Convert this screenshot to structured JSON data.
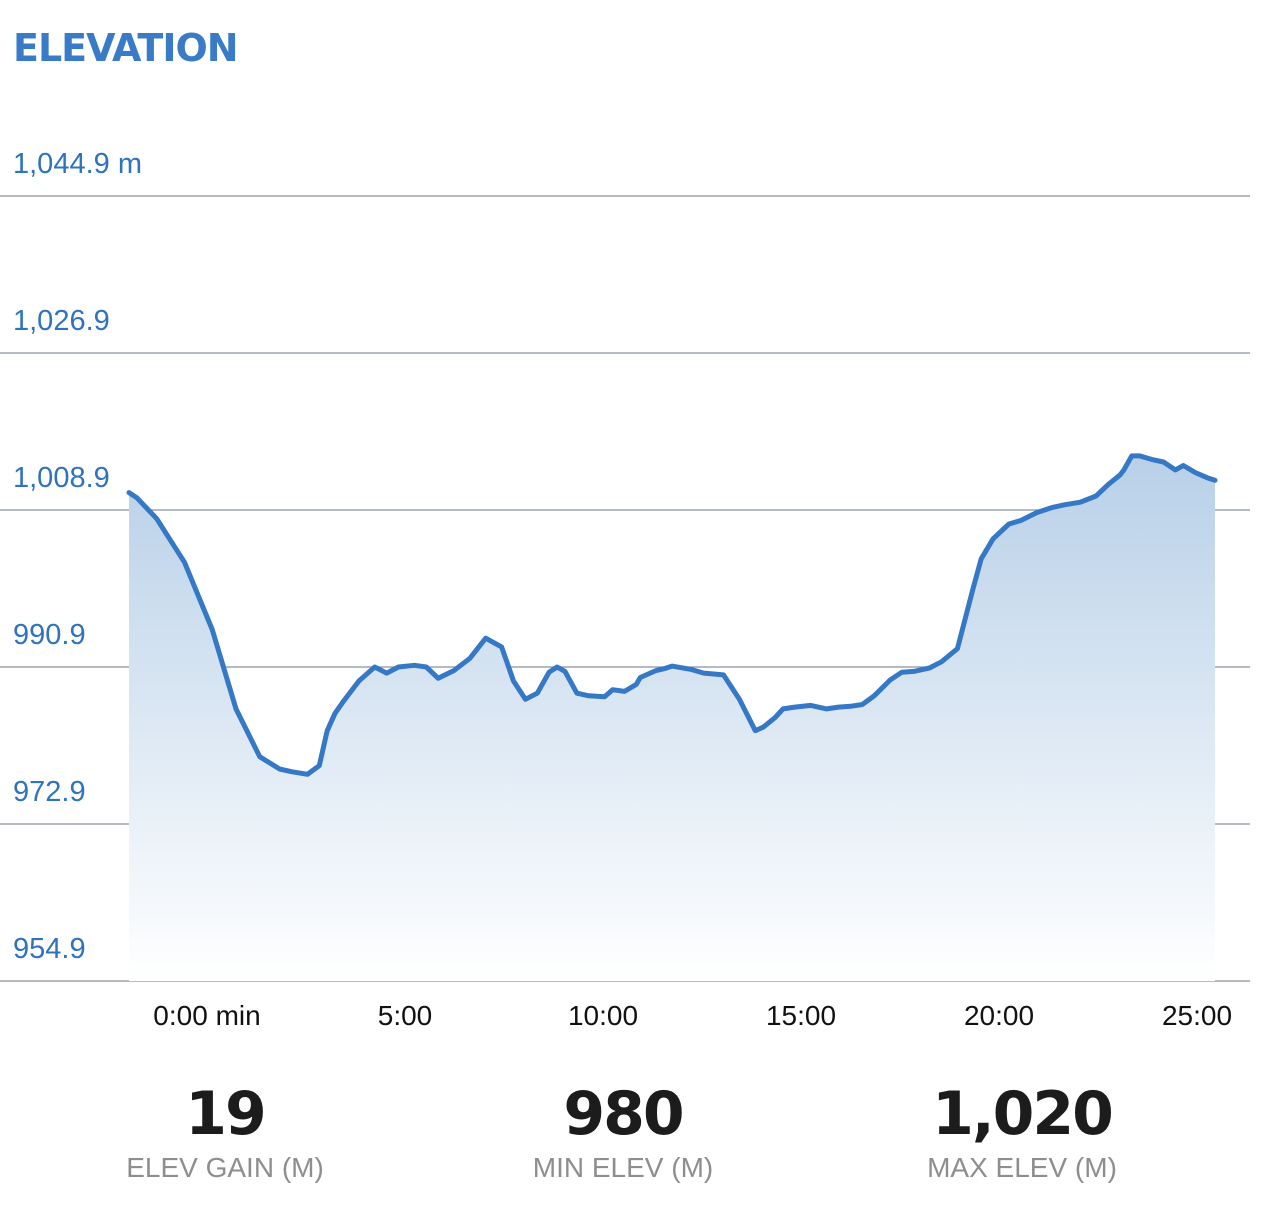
{
  "header": {
    "title": "ELEVATION"
  },
  "colors": {
    "accent": "#2f73bf",
    "line": "#3578c6",
    "grid": "#8b8fa3"
  },
  "chart_data": {
    "type": "area",
    "title": "ELEVATION",
    "ylabel_unit": "m",
    "y_ticks": [
      "1,044.9 m",
      "1,026.9",
      "1,008.9",
      "990.9",
      "972.9",
      "954.9"
    ],
    "y_tick_values": [
      1044.9,
      1026.9,
      1008.9,
      990.9,
      972.9,
      954.9
    ],
    "ylim": [
      954.9,
      1044.9
    ],
    "x_ticks": [
      "0:00 min",
      "5:00",
      "10:00",
      "15:00",
      "20:00",
      "25:00"
    ],
    "x_tick_values": [
      0,
      5,
      10,
      15,
      20,
      25
    ],
    "xlim": [
      -2,
      25.5
    ],
    "grid": true,
    "series": [
      {
        "x": [
          -2.0,
          -1.8,
          -1.3,
          -0.6,
          0.1,
          0.7,
          1.3,
          1.8,
          2.1,
          2.5,
          2.8,
          3.0,
          3.2,
          3.4,
          3.8,
          4.2,
          4.5,
          4.8,
          5.2,
          5.5,
          5.8,
          6.2,
          6.6,
          7.0,
          7.4,
          7.7,
          8.0,
          8.3,
          8.6,
          8.8,
          9.0,
          9.3,
          9.6,
          10.0,
          10.2,
          10.5,
          10.8,
          10.9,
          11.1,
          11.3,
          11.5,
          11.7,
          12.2,
          12.5,
          13.0,
          13.4,
          13.8,
          14.0,
          14.3,
          14.5,
          14.8,
          15.2,
          15.6,
          15.9,
          16.2,
          16.5,
          16.8,
          17.2,
          17.5,
          17.8,
          18.2,
          18.5,
          18.9,
          19.3,
          19.5,
          19.8,
          20.2,
          20.5,
          20.9,
          21.3,
          21.6,
          22.0,
          22.4,
          22.7,
          23.0,
          23.1,
          23.3,
          23.5,
          23.8,
          24.1,
          24.4,
          24.6,
          24.9,
          25.2,
          25.4
        ],
        "y": [
          1010.9,
          1010.3,
          1007.9,
          1002.9,
          995.2,
          986.1,
          980.6,
          979.2,
          978.9,
          978.6,
          979.6,
          983.6,
          985.6,
          986.9,
          989.3,
          990.9,
          990.2,
          990.9,
          991.1,
          990.9,
          989.6,
          990.5,
          991.9,
          994.2,
          993.2,
          989.3,
          987.2,
          987.9,
          990.3,
          990.9,
          990.4,
          987.9,
          987.6,
          987.5,
          988.3,
          988.1,
          988.9,
          989.7,
          990.1,
          990.5,
          990.7,
          991.0,
          990.6,
          990.2,
          990.0,
          987.2,
          983.6,
          984.0,
          985.1,
          986.1,
          986.3,
          986.5,
          986.1,
          986.3,
          986.4,
          986.6,
          987.6,
          989.4,
          990.3,
          990.4,
          990.8,
          991.5,
          993.0,
          1000.0,
          1003.3,
          1005.6,
          1007.3,
          1007.7,
          1008.6,
          1009.2,
          1009.5,
          1009.8,
          1010.5,
          1011.8,
          1012.9,
          1013.5,
          1015.1,
          1015.1,
          1014.7,
          1014.4,
          1013.5,
          1014.0,
          1013.2,
          1012.6,
          1012.3
        ]
      }
    ]
  },
  "stats": [
    {
      "value": "19",
      "label": "ELEV GAIN (M)"
    },
    {
      "value": "980",
      "label": "MIN ELEV (M)"
    },
    {
      "value": "1,020",
      "label": "MAX ELEV (M)"
    }
  ]
}
